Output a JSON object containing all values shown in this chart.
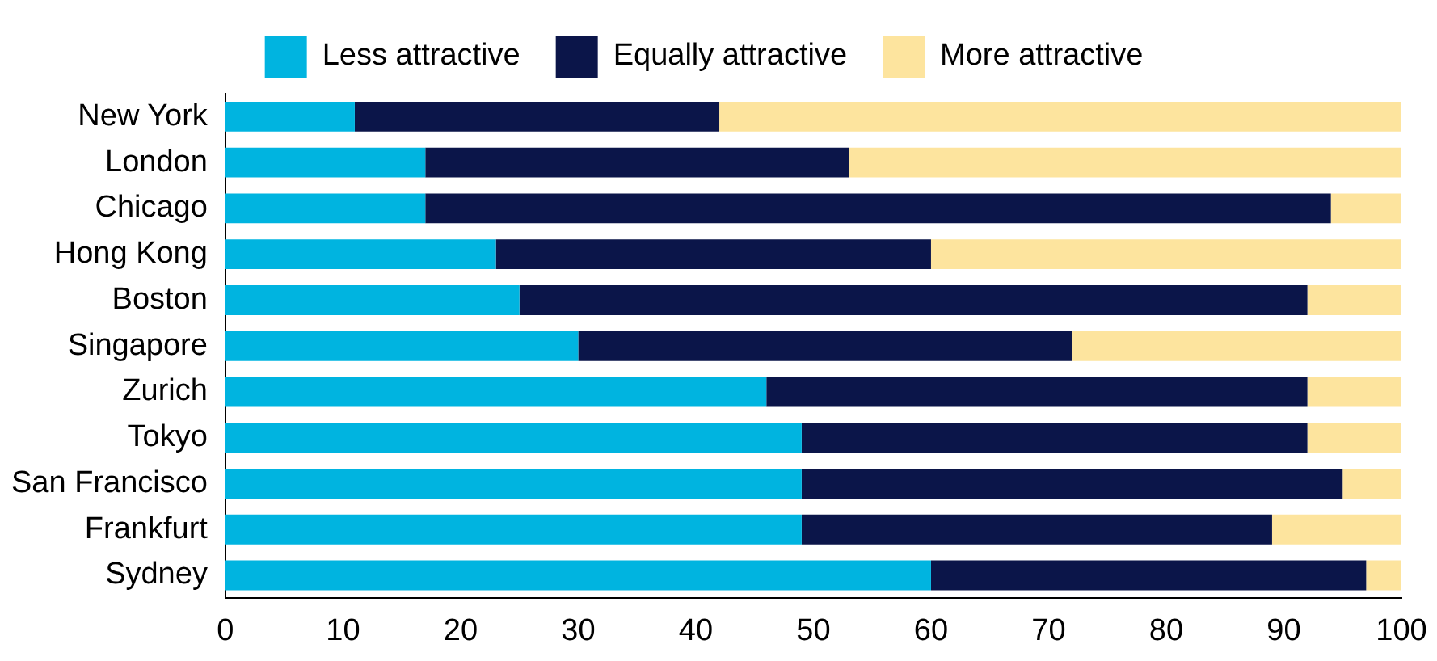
{
  "chart_data": {
    "type": "bar",
    "orientation": "horizontal",
    "stacked": true,
    "legend": "top",
    "grid": false,
    "categories": [
      "New York",
      "London",
      "Chicago",
      "Hong Kong",
      "Boston",
      "Singapore",
      "Zurich",
      "Tokyo",
      "San Francisco",
      "Frankfurt",
      "Sydney"
    ],
    "series": [
      {
        "name": "Less attractive",
        "color": "#00b4e0",
        "values": [
          11,
          17,
          17,
          23,
          25,
          30,
          46,
          49,
          49,
          49,
          60
        ]
      },
      {
        "name": "Equally attractive",
        "color": "#0b1549",
        "values": [
          31,
          36,
          77,
          37,
          67,
          42,
          46,
          43,
          46,
          40,
          37
        ]
      },
      {
        "name": "More attractive",
        "color": "#fde49e",
        "values": [
          58,
          47,
          6,
          40,
          8,
          28,
          8,
          8,
          5,
          11,
          3
        ]
      }
    ],
    "xlim": [
      0,
      100
    ],
    "xticks": [
      0,
      10,
      20,
      30,
      40,
      50,
      60,
      70,
      80,
      90,
      100
    ]
  }
}
